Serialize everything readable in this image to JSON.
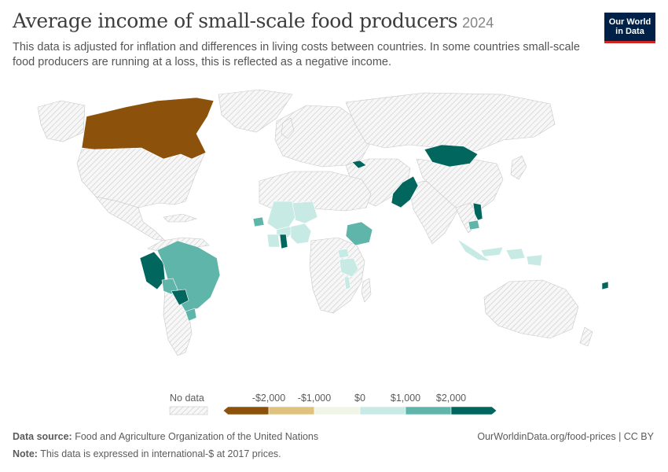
{
  "header": {
    "title": "Average income of small-scale food producers",
    "year": "2024",
    "subtitle": "This data is adjusted for inflation and differences in living costs between countries. In some countries small-scale food producers are running at a loss, this is reflected as a negative income."
  },
  "logo": {
    "line1": "Our World",
    "line2": "in Data"
  },
  "legend": {
    "no_data_label": "No data",
    "tick_labels": [
      "-$2,000",
      "-$1,000",
      "$0",
      "$1,000",
      "$2,000"
    ],
    "bins": [
      {
        "from": null,
        "to": -2000,
        "color": "#8c510a"
      },
      {
        "from": -2000,
        "to": -1000,
        "color": "#dfc27d"
      },
      {
        "from": -1000,
        "to": 0,
        "color": "#f0f5e6"
      },
      {
        "from": 0,
        "to": 1000,
        "color": "#c7eae5"
      },
      {
        "from": 1000,
        "to": 2000,
        "color": "#5fb5aa"
      },
      {
        "from": 2000,
        "to": null,
        "color": "#01665e"
      }
    ]
  },
  "footer": {
    "source_label": "Data source:",
    "source_value": "Food and Agriculture Organization of the United Nations",
    "url": "OurWorldinData.org/food-prices | CC BY",
    "note_label": "Note:",
    "note_value": "This data is expressed in international-$ at 2017 prices."
  },
  "map": {
    "no_data_style": "hatched",
    "colored_regions": [
      {
        "id": "canada",
        "bin": 0
      },
      {
        "id": "peru",
        "bin": 5
      },
      {
        "id": "brazil",
        "bin": 4
      },
      {
        "id": "paraguay",
        "bin": 5
      },
      {
        "id": "uruguay",
        "bin": 4
      },
      {
        "id": "bolivia",
        "bin": 4
      },
      {
        "id": "senegal",
        "bin": 4
      },
      {
        "id": "mali",
        "bin": 3
      },
      {
        "id": "niger",
        "bin": 3
      },
      {
        "id": "burkina-faso",
        "bin": 3
      },
      {
        "id": "cote-divoire",
        "bin": 3
      },
      {
        "id": "ghana",
        "bin": 5
      },
      {
        "id": "nigeria",
        "bin": 3
      },
      {
        "id": "ethiopia",
        "bin": 4
      },
      {
        "id": "uganda",
        "bin": 3
      },
      {
        "id": "tanzania",
        "bin": 3
      },
      {
        "id": "malawi",
        "bin": 3
      },
      {
        "id": "georgia",
        "bin": 5
      },
      {
        "id": "pakistan",
        "bin": 5
      },
      {
        "id": "mongolia",
        "bin": 5
      },
      {
        "id": "cambodia",
        "bin": 4
      },
      {
        "id": "vietnam",
        "bin": 5
      },
      {
        "id": "indonesia",
        "bin": 3
      },
      {
        "id": "fiji",
        "bin": 5
      }
    ]
  }
}
